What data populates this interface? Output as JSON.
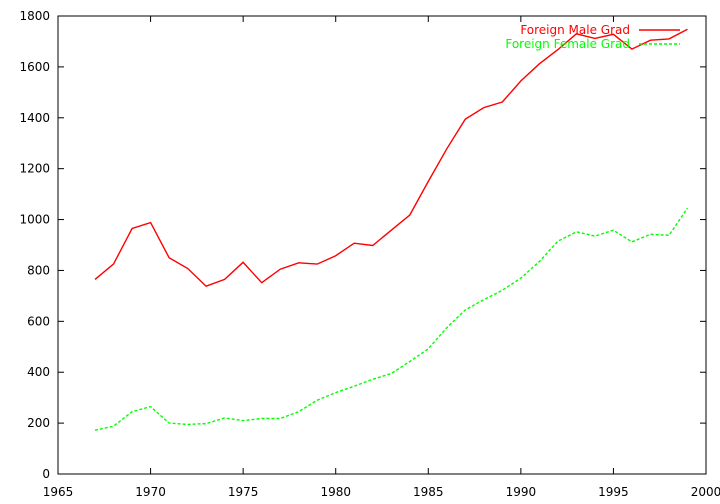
{
  "chart_data": {
    "type": "line",
    "title": "",
    "xlabel": "",
    "ylabel": "",
    "xlim": [
      1965,
      2000
    ],
    "ylim": [
      0,
      1800
    ],
    "x_ticks": [
      1965,
      1970,
      1975,
      1980,
      1985,
      1990,
      1995,
      2000
    ],
    "y_ticks": [
      0,
      200,
      400,
      600,
      800,
      1000,
      1200,
      1400,
      1600,
      1800
    ],
    "grid": false,
    "legend_position": "top-right",
    "x": [
      1967,
      1968,
      1969,
      1970,
      1971,
      1972,
      1973,
      1974,
      1975,
      1976,
      1977,
      1978,
      1979,
      1980,
      1981,
      1982,
      1983,
      1984,
      1985,
      1986,
      1987,
      1988,
      1989,
      1990,
      1991,
      1992,
      1993,
      1994,
      1995,
      1996,
      1997,
      1998,
      1999
    ],
    "series": [
      {
        "name": "Foreign Male Grad",
        "color": "#ff0000",
        "dash": "solid",
        "values": [
          765,
          825,
          965,
          988,
          850,
          808,
          738,
          765,
          832,
          752,
          805,
          830,
          825,
          858,
          907,
          898,
          958,
          1018,
          1150,
          1278,
          1395,
          1440,
          1462,
          1545,
          1612,
          1668,
          1730,
          1712,
          1728,
          1670,
          1705,
          1710,
          1748
        ]
      },
      {
        "name": "Foreign Female Grad",
        "color": "#00ff00",
        "dash": "dashed",
        "values": [
          172,
          188,
          245,
          265,
          200,
          195,
          198,
          220,
          210,
          218,
          218,
          245,
          290,
          320,
          345,
          372,
          395,
          442,
          492,
          575,
          645,
          685,
          722,
          770,
          835,
          915,
          952,
          935,
          958,
          912,
          942,
          938,
          1045
        ]
      }
    ]
  }
}
